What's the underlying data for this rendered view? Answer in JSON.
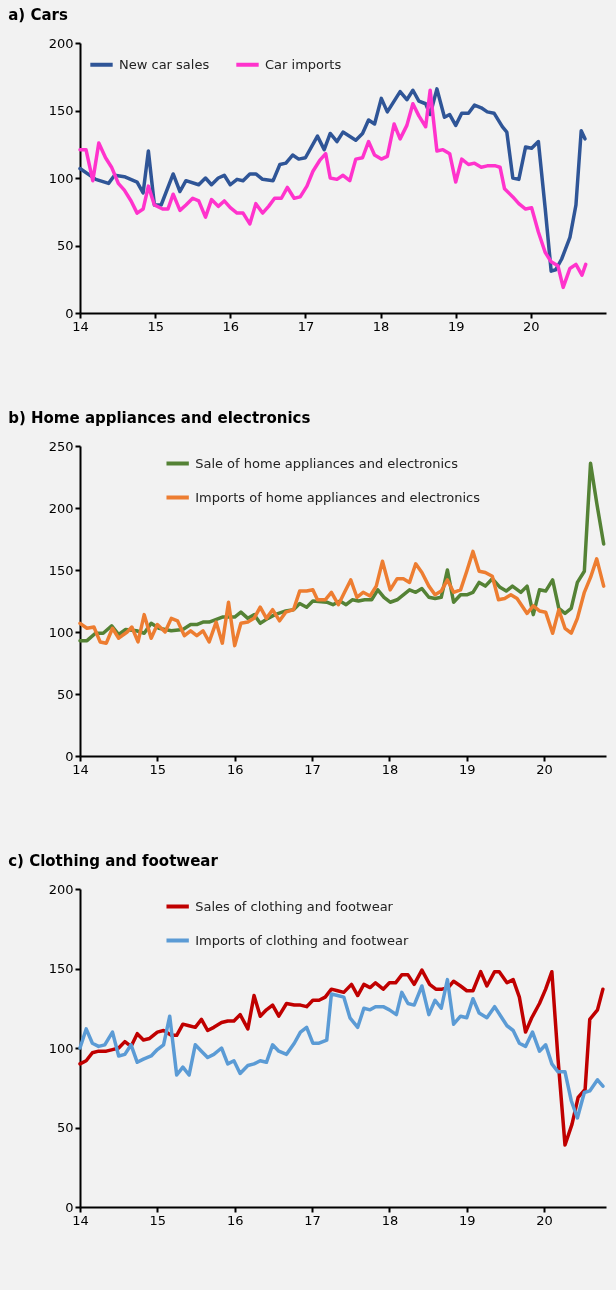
{
  "chart_data": [
    {
      "type": "line",
      "title": "a) Cars",
      "legend": "top left",
      "xlim": [
        14,
        21
      ],
      "xticks": [
        14,
        15,
        16,
        17,
        18,
        19,
        20
      ],
      "ylim": [
        0,
        200
      ],
      "yticks": [
        0,
        50,
        100,
        150,
        200
      ],
      "series": [
        {
          "name": "New car sales",
          "color": "#2f5597",
          "x": [
            14.0,
            14.21,
            14.38,
            14.46,
            14.59,
            14.76,
            14.84,
            14.91,
            14.99,
            15.08,
            15.24,
            15.33,
            15.41,
            15.58,
            15.67,
            15.75,
            15.84,
            15.92,
            16.0,
            16.09,
            16.17,
            16.26,
            16.34,
            16.43,
            16.57,
            16.66,
            16.74,
            16.83,
            16.91,
            17.0,
            17.16,
            17.25,
            17.33,
            17.42,
            17.5,
            17.67,
            17.76,
            17.84,
            17.92,
            18.01,
            18.09,
            18.26,
            18.35,
            18.43,
            18.51,
            18.6,
            18.66,
            18.75,
            18.85,
            18.92,
            19.0,
            19.08,
            19.17,
            19.25,
            19.34,
            19.42,
            19.51,
            19.62,
            19.68,
            19.76,
            19.84,
            19.93,
            20.01,
            20.1,
            20.19,
            20.27,
            20.33,
            20.41,
            20.52,
            20.6,
            20.67,
            20.72
          ],
          "values": [
            107,
            99,
            96,
            102,
            101,
            97,
            89,
            120,
            80,
            80,
            103,
            90,
            98,
            95,
            100,
            95,
            100,
            102,
            95,
            99,
            98,
            103,
            103,
            99,
            98,
            110,
            111,
            117,
            114,
            115,
            131,
            121,
            133,
            127,
            134,
            128,
            133,
            143,
            140,
            159,
            149,
            164,
            158,
            165,
            157,
            155,
            147,
            166,
            145,
            147,
            139,
            148,
            148,
            154,
            152,
            149,
            148,
            138,
            134,
            100,
            99,
            123,
            122,
            127,
            78,
            31,
            32,
            40,
            56,
            80,
            135,
            129
          ]
        },
        {
          "name": "Car imports",
          "color": "#ff33cc",
          "x": [
            14.0,
            14.08,
            14.17,
            14.25,
            14.34,
            14.42,
            14.51,
            14.59,
            14.68,
            14.76,
            14.84,
            14.91,
            14.99,
            15.1,
            15.17,
            15.24,
            15.33,
            15.41,
            15.5,
            15.58,
            15.67,
            15.75,
            15.84,
            15.92,
            16.0,
            16.09,
            16.17,
            16.26,
            16.34,
            16.43,
            16.51,
            16.59,
            16.68,
            16.76,
            16.85,
            16.93,
            17.02,
            17.1,
            17.19,
            17.27,
            17.33,
            17.42,
            17.5,
            17.59,
            17.67,
            17.76,
            17.84,
            17.92,
            18.01,
            18.09,
            18.18,
            18.26,
            18.35,
            18.43,
            18.51,
            18.6,
            18.66,
            18.75,
            18.83,
            18.92,
            19.0,
            19.08,
            19.17,
            19.25,
            19.34,
            19.42,
            19.53,
            19.59,
            19.65,
            19.76,
            19.84,
            19.93,
            20.01,
            20.1,
            20.19,
            20.27,
            20.36,
            20.43,
            20.52,
            20.6,
            20.68,
            20.73
          ],
          "values": [
            121,
            121,
            98,
            126,
            115,
            108,
            96,
            91,
            83,
            74,
            77,
            94,
            80,
            77,
            77,
            88,
            76,
            80,
            85,
            83,
            71,
            84,
            79,
            83,
            78,
            74,
            74,
            66,
            81,
            74,
            79,
            85,
            85,
            93,
            85,
            86,
            94,
            105,
            113,
            118,
            100,
            99,
            102,
            98,
            114,
            115,
            127,
            117,
            114,
            116,
            140,
            129,
            139,
            155,
            146,
            138,
            165,
            120,
            121,
            118,
            97,
            114,
            110,
            111,
            108,
            109,
            109,
            108,
            92,
            86,
            81,
            77,
            78,
            60,
            45,
            38,
            35,
            19,
            33,
            36,
            28,
            36
          ]
        }
      ]
    },
    {
      "type": "line",
      "title": "b) Home appliances and electronics",
      "legend": "top",
      "xlim": [
        14,
        20.8
      ],
      "xticks": [
        14,
        15,
        16,
        17,
        18,
        19,
        20
      ],
      "ylim": [
        0,
        250
      ],
      "yticks": [
        0,
        50,
        100,
        150,
        200,
        250
      ],
      "series": [
        {
          "name": "Sale of home appliances and electronics",
          "color": "#548235",
          "x": [
            14.0,
            14.09,
            14.2,
            14.3,
            14.41,
            14.5,
            14.59,
            14.73,
            14.83,
            14.92,
            15.02,
            15.18,
            15.33,
            15.43,
            15.51,
            15.59,
            15.67,
            15.84,
            16.0,
            16.08,
            16.17,
            16.25,
            16.33,
            16.43,
            16.52,
            16.66,
            16.76,
            16.84,
            16.93,
            17.01,
            17.19,
            17.27,
            17.36,
            17.44,
            17.52,
            17.6,
            17.68,
            17.77,
            17.85,
            17.93,
            18.01,
            18.1,
            18.26,
            18.34,
            18.42,
            18.51,
            18.59,
            18.67,
            18.75,
            18.83,
            18.92,
            19.0,
            19.08,
            19.16,
            19.24,
            19.33,
            19.43,
            19.51,
            19.59,
            19.7,
            19.78,
            19.86,
            19.94,
            20.02,
            20.11,
            20.19,
            20.27,
            20.35,
            20.43,
            20.52,
            20.6,
            20.68,
            20.77
          ],
          "values": [
            93,
            93,
            99,
            99,
            105,
            98,
            102,
            101,
            99,
            107,
            103,
            101,
            102,
            106,
            106,
            108,
            108,
            112,
            112,
            116,
            111,
            114,
            107,
            111,
            114,
            117,
            118,
            123,
            120,
            125,
            124,
            122,
            125,
            122,
            126,
            125,
            126,
            126,
            134,
            128,
            124,
            126,
            134,
            132,
            135,
            128,
            127,
            128,
            150,
            124,
            130,
            130,
            132,
            140,
            137,
            143,
            136,
            133,
            137,
            132,
            137,
            114,
            134,
            133,
            142,
            119,
            115,
            119,
            140,
            149,
            236,
            204,
            171
          ]
        },
        {
          "name": "Imports of home appliances and electronics",
          "color": "#ed7d31",
          "x": [
            14.0,
            14.09,
            14.18,
            14.26,
            14.34,
            14.42,
            14.5,
            14.61,
            14.67,
            14.75,
            14.83,
            14.92,
            15.0,
            15.1,
            15.18,
            15.26,
            15.35,
            15.43,
            15.51,
            15.59,
            15.67,
            15.76,
            15.84,
            15.92,
            16.0,
            16.08,
            16.17,
            16.25,
            16.33,
            16.41,
            16.49,
            16.58,
            16.66,
            16.76,
            16.84,
            16.93,
            17.01,
            17.07,
            17.17,
            17.25,
            17.34,
            17.42,
            17.5,
            17.58,
            17.66,
            17.75,
            17.83,
            17.91,
            18.01,
            18.1,
            18.18,
            18.26,
            18.34,
            18.42,
            18.51,
            18.59,
            18.67,
            18.75,
            18.83,
            18.92,
            19.0,
            19.08,
            19.16,
            19.24,
            19.33,
            19.41,
            19.49,
            19.57,
            19.65,
            19.78,
            19.86,
            19.94,
            20.02,
            20.11,
            20.19,
            20.27,
            20.35,
            20.43,
            20.52,
            20.6,
            20.68,
            20.77
          ],
          "values": [
            107,
            103,
            104,
            92,
            91,
            103,
            95,
            100,
            104,
            92,
            114,
            95,
            106,
            100,
            111,
            109,
            97,
            101,
            97,
            101,
            92,
            108,
            91,
            124,
            89,
            107,
            108,
            111,
            120,
            111,
            118,
            109,
            116,
            118,
            133,
            133,
            134,
            126,
            126,
            132,
            122,
            132,
            142,
            128,
            132,
            129,
            137,
            157,
            134,
            143,
            143,
            140,
            155,
            148,
            137,
            130,
            133,
            142,
            132,
            134,
            149,
            165,
            149,
            148,
            145,
            126,
            127,
            130,
            127,
            115,
            121,
            117,
            116,
            99,
            118,
            103,
            99,
            111,
            132,
            144,
            159,
            137
          ]
        }
      ]
    },
    {
      "type": "line",
      "title": "c) Clothing and footwear",
      "legend": "top",
      "xlim": [
        14,
        20.8
      ],
      "xticks": [
        14,
        15,
        16,
        17,
        18,
        19,
        20
      ],
      "ylim": [
        0,
        200
      ],
      "yticks": [
        0,
        50,
        100,
        150,
        200
      ],
      "series": [
        {
          "name": "Sales of clothing and footwear",
          "color": "#c00000",
          "x": [
            14.0,
            14.08,
            14.16,
            14.24,
            14.34,
            14.42,
            14.5,
            14.58,
            14.66,
            14.74,
            14.82,
            14.9,
            15.0,
            15.08,
            15.18,
            15.25,
            15.33,
            15.41,
            15.49,
            15.57,
            15.65,
            15.73,
            15.83,
            15.91,
            15.99,
            16.07,
            16.17,
            16.25,
            16.33,
            16.41,
            16.49,
            16.57,
            16.67,
            16.77,
            16.85,
            16.93,
            17.01,
            17.09,
            17.17,
            17.25,
            17.33,
            17.41,
            17.51,
            17.59,
            17.67,
            17.75,
            17.82,
            17.92,
            18.0,
            18.08,
            18.16,
            18.24,
            18.32,
            18.42,
            18.52,
            18.6,
            18.68,
            18.76,
            18.83,
            18.92,
            19.0,
            19.08,
            19.18,
            19.26,
            19.36,
            19.42,
            19.52,
            19.6,
            19.68,
            19.76,
            19.84,
            19.94,
            20.02,
            20.1,
            20.18,
            20.27,
            20.36,
            20.44,
            20.53,
            20.59,
            20.69,
            20.76
          ],
          "values": [
            90,
            92,
            97,
            98,
            98,
            99,
            100,
            104,
            101,
            109,
            105,
            106,
            110,
            111,
            108,
            108,
            115,
            114,
            113,
            118,
            111,
            113,
            116,
            117,
            117,
            121,
            112,
            133,
            120,
            124,
            127,
            120,
            128,
            127,
            127,
            126,
            130,
            130,
            132,
            137,
            136,
            135,
            140,
            133,
            140,
            138,
            141,
            137,
            141,
            141,
            146,
            146,
            140,
            149,
            140,
            137,
            137,
            138,
            142,
            139,
            136,
            136,
            148,
            139,
            148,
            148,
            141,
            143,
            132,
            110,
            119,
            128,
            137,
            148,
            93,
            39,
            52,
            69,
            74,
            118,
            124,
            137
          ]
        },
        {
          "name": "Imports of clothing and footwear",
          "color": "#5b9bd5",
          "x": [
            14.0,
            14.08,
            14.16,
            14.24,
            14.32,
            14.42,
            14.5,
            14.58,
            14.66,
            14.74,
            14.82,
            14.92,
            15.0,
            15.08,
            15.16,
            15.25,
            15.33,
            15.41,
            15.49,
            15.57,
            15.65,
            15.73,
            15.83,
            15.91,
            15.99,
            16.07,
            16.17,
            16.25,
            16.33,
            16.41,
            16.49,
            16.57,
            16.67,
            16.77,
            16.85,
            16.93,
            17.01,
            17.09,
            17.19,
            17.25,
            17.33,
            17.41,
            17.49,
            17.59,
            17.67,
            17.75,
            17.82,
            17.92,
            18.0,
            18.09,
            18.16,
            18.24,
            18.32,
            18.42,
            18.51,
            18.59,
            18.67,
            18.75,
            18.83,
            18.92,
            19.0,
            19.08,
            19.16,
            19.26,
            19.36,
            19.44,
            19.52,
            19.6,
            19.68,
            19.76,
            19.85,
            19.94,
            20.02,
            20.1,
            20.18,
            20.27,
            20.35,
            20.43,
            20.52,
            20.59,
            20.69,
            20.76
          ],
          "values": [
            100,
            112,
            103,
            101,
            102,
            110,
            95,
            96,
            102,
            91,
            93,
            95,
            99,
            102,
            120,
            83,
            88,
            83,
            102,
            98,
            94,
            96,
            100,
            90,
            92,
            84,
            89,
            90,
            92,
            91,
            102,
            98,
            96,
            103,
            110,
            113,
            103,
            103,
            105,
            134,
            133,
            132,
            119,
            113,
            125,
            124,
            126,
            126,
            124,
            121,
            135,
            128,
            127,
            139,
            121,
            130,
            125,
            143,
            115,
            120,
            119,
            131,
            122,
            119,
            126,
            120,
            114,
            111,
            103,
            101,
            110,
            98,
            102,
            90,
            85,
            85,
            67,
            56,
            72,
            73,
            80,
            76
          ]
        }
      ]
    }
  ]
}
